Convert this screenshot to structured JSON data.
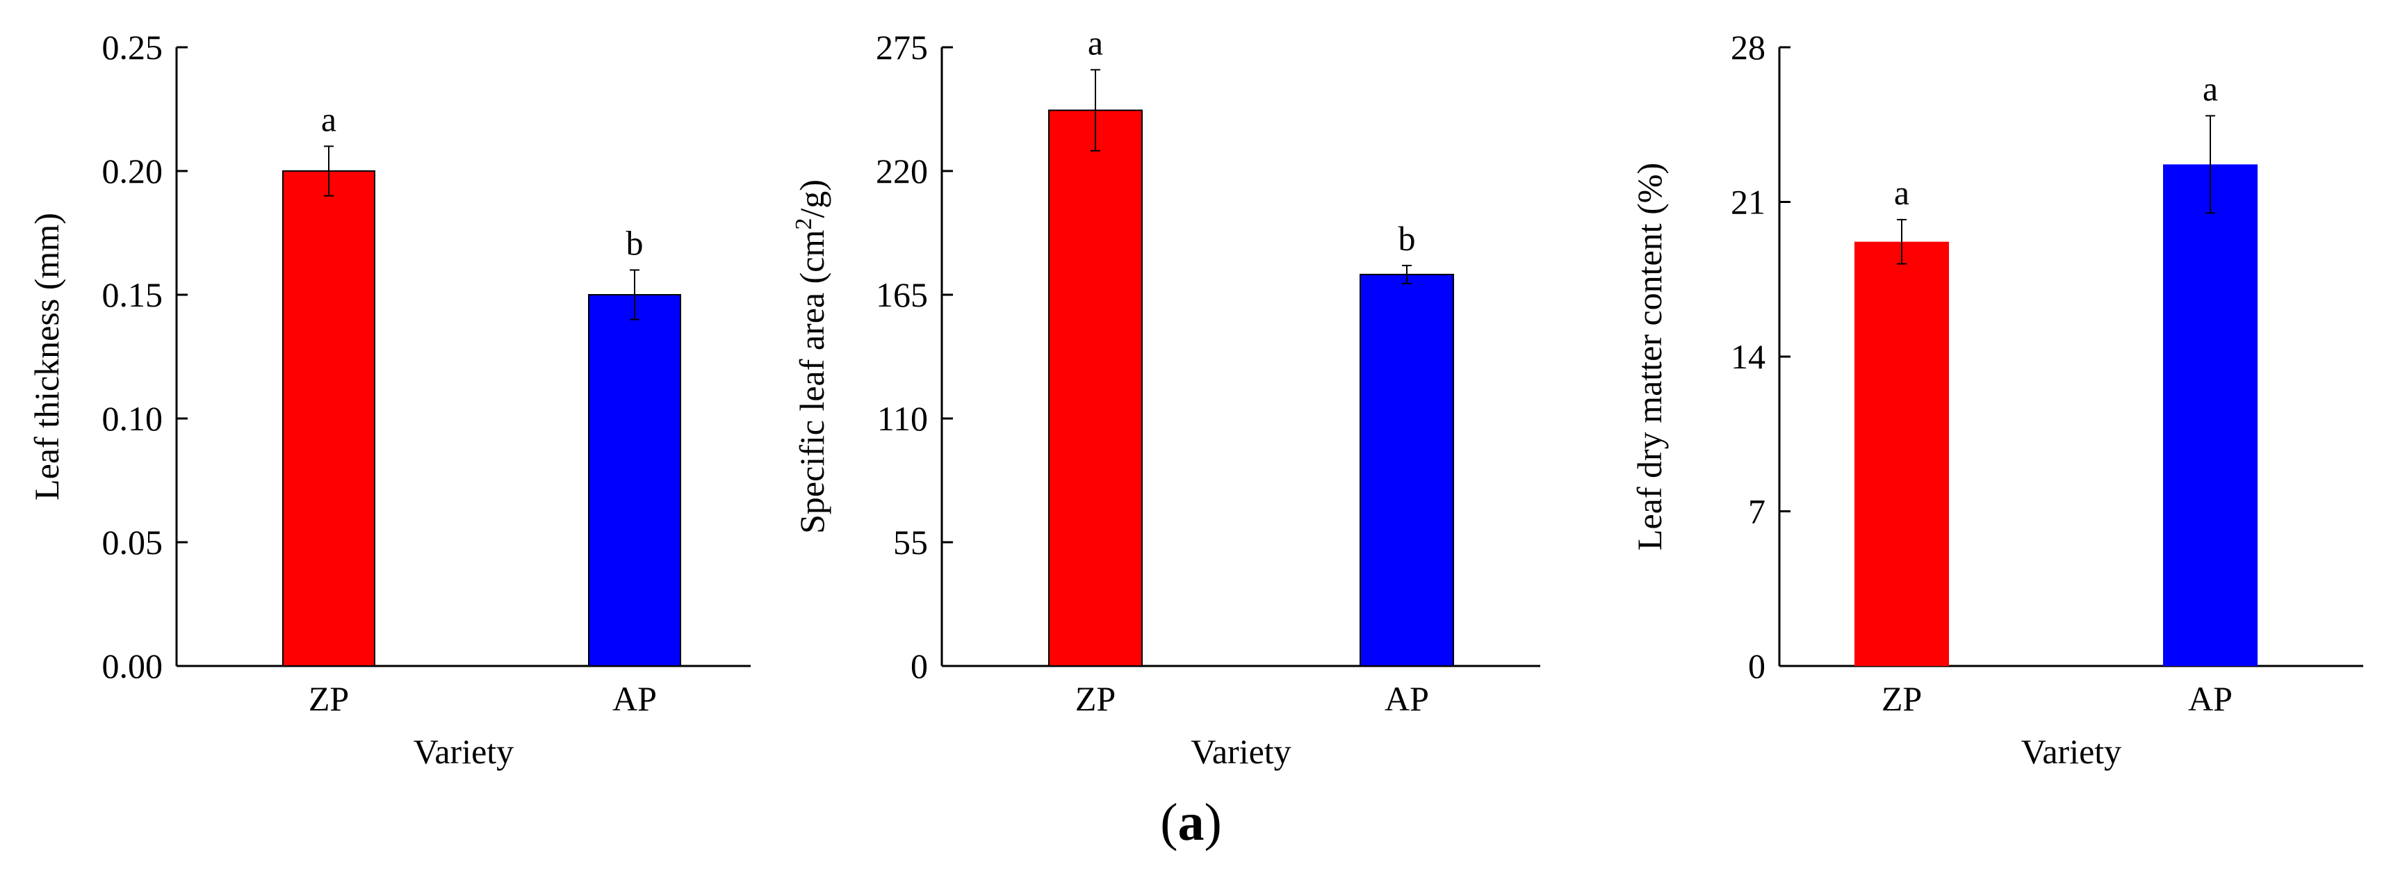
{
  "caption": {
    "open": "(",
    "letter": "a",
    "close": ")"
  },
  "chart_data": [
    {
      "type": "bar",
      "categories": [
        "ZP",
        "AP"
      ],
      "values": [
        0.2,
        0.15
      ],
      "errors": [
        0.01,
        0.01
      ],
      "significance": [
        "a",
        "b"
      ],
      "colors": [
        "#ff0000",
        "#0000ff"
      ],
      "bar_outline": true,
      "title": "",
      "xlabel": "Variety",
      "ylabel": "Leaf thickness (mm)",
      "ylabel_superscript": null,
      "ylim": [
        0,
        0.25
      ],
      "yticks": [
        0.0,
        0.05,
        0.1,
        0.15,
        0.2,
        0.25
      ],
      "ytick_labels": [
        "0.00",
        "0.05",
        "0.10",
        "0.15",
        "0.20",
        "0.25"
      ]
    },
    {
      "type": "bar",
      "categories": [
        "ZP",
        "AP"
      ],
      "values": [
        247,
        174
      ],
      "errors": [
        18,
        4
      ],
      "significance": [
        "a",
        "b"
      ],
      "colors": [
        "#ff0000",
        "#0000ff"
      ],
      "bar_outline": true,
      "title": "",
      "xlabel": "Variety",
      "ylabel": "Specific leaf area (cm2/g)",
      "ylabel_parts": [
        "Specific leaf area (cm",
        "2",
        "/g)"
      ],
      "ylim": [
        0,
        275
      ],
      "yticks": [
        0,
        55,
        110,
        165,
        220,
        275
      ],
      "ytick_labels": [
        "0",
        "55",
        "110",
        "165",
        "220",
        "275"
      ]
    },
    {
      "type": "bar",
      "categories": [
        "ZP",
        "AP"
      ],
      "values": [
        19.2,
        22.7
      ],
      "errors": [
        1.0,
        2.2
      ],
      "significance": [
        "a",
        "a"
      ],
      "colors": [
        "#ff0000",
        "#0000ff"
      ],
      "bar_outline": false,
      "title": "",
      "xlabel": "Variety",
      "ylabel": "Leaf dry matter content (%)",
      "ylabel_superscript": null,
      "ylim": [
        0,
        28
      ],
      "yticks": [
        0,
        7,
        14,
        21,
        28
      ],
      "ytick_labels": [
        "0",
        "7",
        "14",
        "21",
        "28"
      ]
    }
  ]
}
